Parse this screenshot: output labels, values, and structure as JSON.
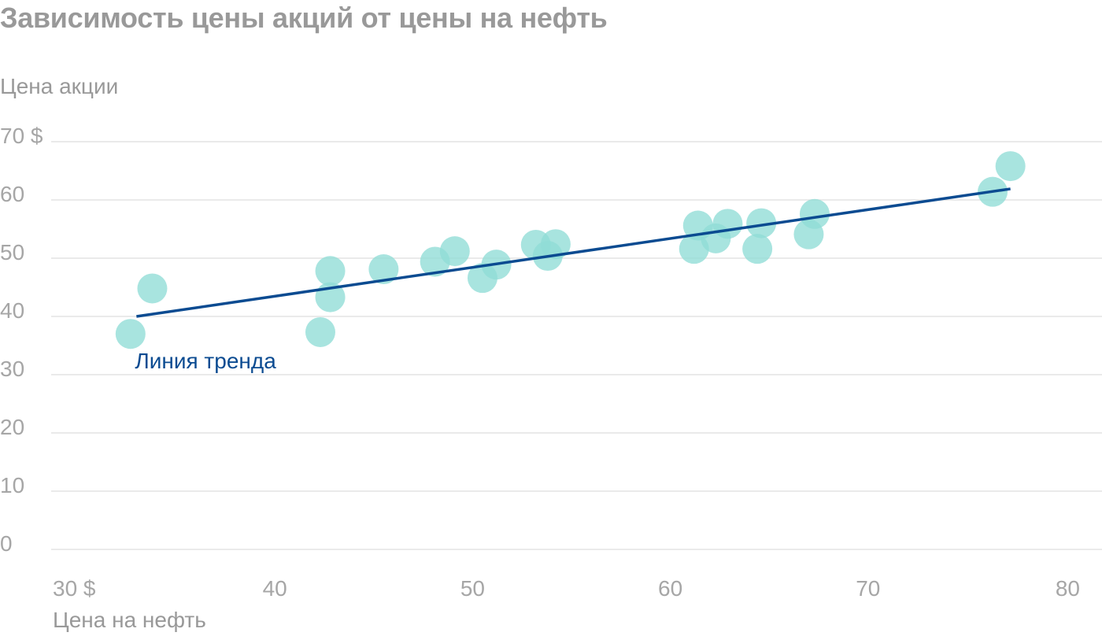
{
  "chart_data": {
    "type": "scatter",
    "title": "Зависимость цены акций от цены на нефть",
    "ylabel": "Цена акции",
    "xlabel": "Цена на нефть",
    "xlim": [
      30,
      80
    ],
    "ylim": [
      0,
      70
    ],
    "x_ticks": [
      {
        "value": 30,
        "label": "30 $"
      },
      {
        "value": 40,
        "label": "40"
      },
      {
        "value": 50,
        "label": "50"
      },
      {
        "value": 60,
        "label": "60"
      },
      {
        "value": 70,
        "label": "70"
      },
      {
        "value": 80,
        "label": "80"
      }
    ],
    "y_ticks": [
      {
        "value": 70,
        "label": "70 $"
      },
      {
        "value": 60,
        "label": "60"
      },
      {
        "value": 50,
        "label": "50"
      },
      {
        "value": 40,
        "label": "40"
      },
      {
        "value": 30,
        "label": "30"
      },
      {
        "value": 20,
        "label": "20"
      },
      {
        "value": 10,
        "label": "10"
      },
      {
        "value": 0,
        "label": "0"
      }
    ],
    "grid": true,
    "points": [
      {
        "x": 32.7,
        "y": 37.0
      },
      {
        "x": 33.8,
        "y": 44.8
      },
      {
        "x": 42.3,
        "y": 37.3
      },
      {
        "x": 42.8,
        "y": 47.8
      },
      {
        "x": 42.8,
        "y": 43.3
      },
      {
        "x": 45.5,
        "y": 48.1
      },
      {
        "x": 48.1,
        "y": 49.4
      },
      {
        "x": 49.1,
        "y": 51.2
      },
      {
        "x": 50.5,
        "y": 46.6
      },
      {
        "x": 51.2,
        "y": 48.9
      },
      {
        "x": 53.2,
        "y": 52.3
      },
      {
        "x": 53.8,
        "y": 50.4
      },
      {
        "x": 54.2,
        "y": 52.4
      },
      {
        "x": 61.2,
        "y": 51.6
      },
      {
        "x": 61.4,
        "y": 55.6
      },
      {
        "x": 62.3,
        "y": 53.4
      },
      {
        "x": 62.9,
        "y": 55.9
      },
      {
        "x": 64.4,
        "y": 51.6
      },
      {
        "x": 64.6,
        "y": 56.0
      },
      {
        "x": 67.0,
        "y": 54.1
      },
      {
        "x": 67.3,
        "y": 57.6
      },
      {
        "x": 76.3,
        "y": 61.4
      },
      {
        "x": 77.2,
        "y": 65.8
      }
    ],
    "trend_line": {
      "label": "Линия тренда",
      "x": [
        33.0,
        77.2
      ],
      "y": [
        40.0,
        61.9
      ]
    },
    "colors": {
      "points": "#8fdcd6",
      "trend": "#0b4b91",
      "grid": "#e3e3e3"
    }
  }
}
